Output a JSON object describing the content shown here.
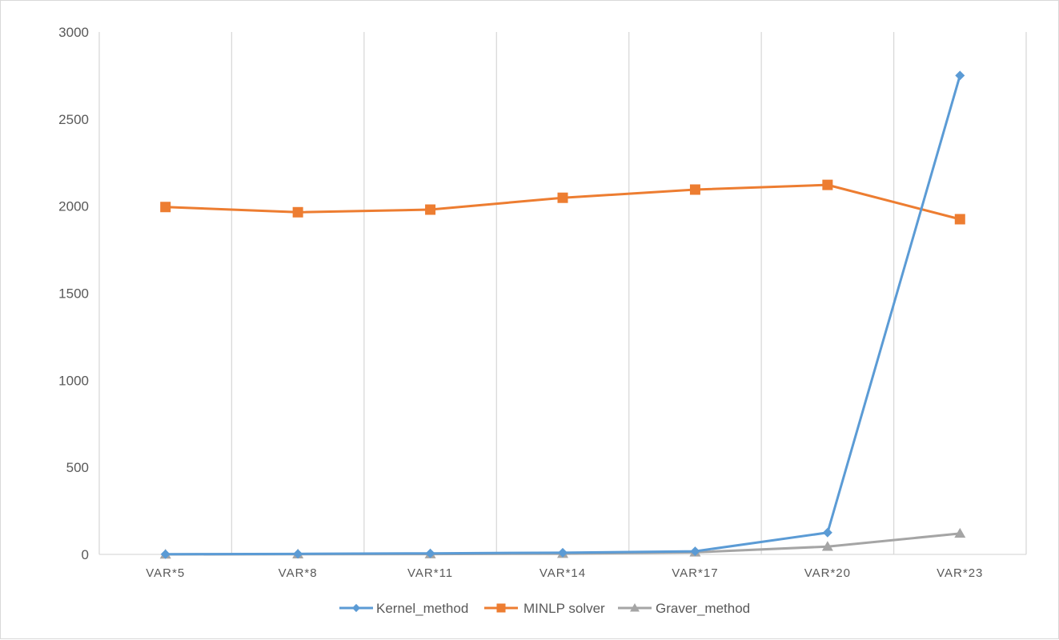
{
  "chart_data": {
    "type": "line",
    "title": "",
    "xlabel": "",
    "ylabel": "",
    "categories": [
      "VAR*5",
      "VAR*8",
      "VAR*11",
      "VAR*14",
      "VAR*17",
      "VAR*20",
      "VAR*23"
    ],
    "ylim": [
      0,
      3000
    ],
    "yticks": [
      "0",
      "500",
      "1000",
      "1500",
      "2000",
      "2500",
      "3000"
    ],
    "grid": "vertical",
    "legend_position": "bottom",
    "series": [
      {
        "name": "Kernel_method",
        "color": "#5b9bd5",
        "marker": "diamond",
        "values": [
          1,
          3,
          6,
          10,
          18,
          125,
          2750
        ]
      },
      {
        "name": "MINLP solver",
        "color": "#ed7d31",
        "marker": "square",
        "values": [
          1995,
          1965,
          1980,
          2048,
          2095,
          2122,
          1925
        ]
      },
      {
        "name": "Graver_method",
        "color": "#a5a5a5",
        "marker": "triangle",
        "values": [
          0,
          1,
          2,
          4,
          12,
          45,
          120
        ]
      }
    ]
  }
}
